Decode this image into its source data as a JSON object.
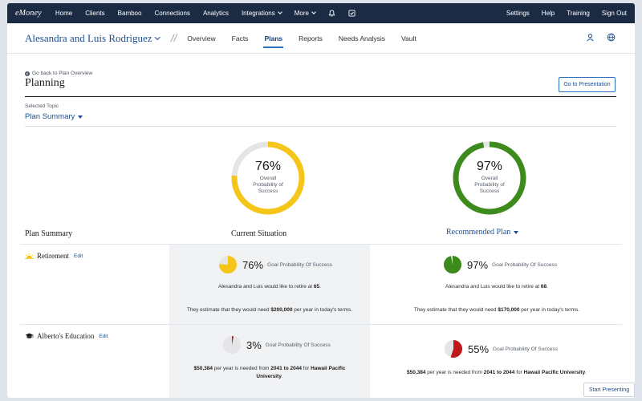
{
  "topnav": {
    "logo": "eMoney",
    "items": [
      "Home",
      "Clients",
      "Bamboo",
      "Connections",
      "Analytics",
      "Integrations",
      "More"
    ],
    "right_items": [
      "Settings",
      "Help",
      "Training",
      "Sign Out"
    ]
  },
  "clientbar": {
    "client_name": "Alesandra and Luis Rodriguez",
    "separator": "//",
    "tabs": [
      "Overview",
      "Facts",
      "Plans",
      "Reports",
      "Needs Analysis",
      "Vault"
    ],
    "active_tab": "Plans"
  },
  "planning": {
    "back_link": "Go back to Plan Overview",
    "title": "Planning",
    "go_to_presentation": "Go to Presentation",
    "selected_topic_label": "Selected Topic",
    "selected_topic_value": "Plan Summary"
  },
  "donuts": {
    "current": {
      "percent_text": "76%",
      "value": 0.76,
      "label_line1": "Overall",
      "label_line2": "Probability of",
      "label_line3": "Success",
      "color": "#f5c518"
    },
    "recommended": {
      "percent_text": "97%",
      "value": 0.97,
      "label_line1": "Overall",
      "label_line2": "Probability of",
      "label_line3": "Success",
      "color": "#3d8b1c"
    }
  },
  "columns": {
    "summary": "Plan Summary",
    "current": "Current Situation",
    "recommended": "Recommended Plan"
  },
  "rows": {
    "retirement": {
      "label": "Retirement",
      "edit": "Edit",
      "current": {
        "percent_text": "76%",
        "value": 0.76,
        "goal_text": "Goal Probability Of Success",
        "color": "#f5c518",
        "line1_pre": "Alesandra and Luis would like to retire at ",
        "line1_bold": "65",
        "line1_post": ".",
        "line2_pre": "They estimate that they would need ",
        "line2_bold": "$200,000",
        "line2_post": " per year in today's terms."
      },
      "recommended": {
        "percent_text": "97%",
        "value": 0.97,
        "goal_text": "Goal Probability Of Success",
        "color": "#3d8b1c",
        "line1_pre": "Alesandra and Luis would like to retire at ",
        "line1_bold": "68",
        "line1_post": ".",
        "line2_pre": "They estimate that they would need ",
        "line2_bold": "$170,000",
        "line2_post": " per year in today's terms."
      }
    },
    "education": {
      "label": "Alberto's Education",
      "edit": "Edit",
      "current": {
        "percent_text": "3%",
        "value": 0.03,
        "goal_text": "Goal Probability Of Success",
        "color": "#c0191d",
        "line_bold1": "$50,384",
        "line_mid1": " per year is needed from ",
        "line_bold2": "2041 to 2044",
        "line_mid2": " for ",
        "line_bold3": "Hawaii Pacific University",
        "line_post": "."
      },
      "recommended": {
        "percent_text": "55%",
        "value": 0.55,
        "goal_text": "Goal Probability Of Success",
        "color": "#c0191d",
        "line_bold1": "$50,384",
        "line_mid1": " per year is needed from ",
        "line_bold2": "2041 to 2044",
        "line_mid2": " for ",
        "line_bold3": "Hawaii Pacific University",
        "line_post": "."
      }
    }
  },
  "start_presenting": "Start Presenting"
}
